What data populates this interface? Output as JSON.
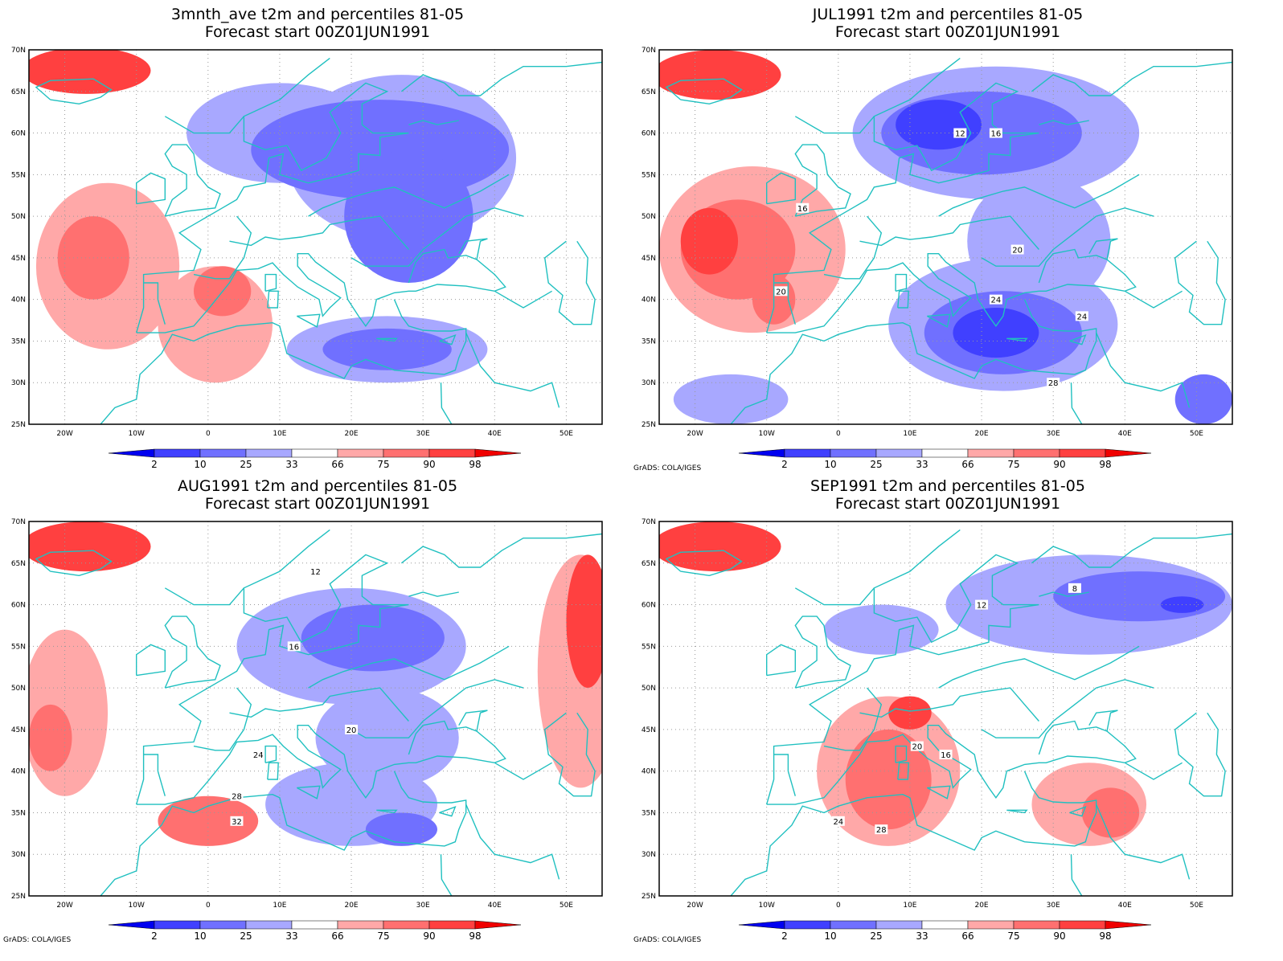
{
  "colorbar": {
    "labels": [
      "2",
      "10",
      "25",
      "33",
      "66",
      "75",
      "90",
      "98"
    ],
    "colors": [
      "#0000f0",
      "#4040ff",
      "#7070ff",
      "#a8a8ff",
      "#ffffff",
      "#ffa8a8",
      "#ff7070",
      "#ff4040",
      "#f00000"
    ]
  },
  "map_axes": {
    "lon_labels": [
      "20W",
      "10W",
      "0",
      "10E",
      "20E",
      "30E",
      "40E",
      "50E"
    ],
    "lat_labels": [
      "70N",
      "65N",
      "60N",
      "55N",
      "50N",
      "45N",
      "40N",
      "35N",
      "30N",
      "25N"
    ],
    "coast_color": "#20c0c0"
  },
  "credit": "GrADS: COLA/IGES",
  "panels": [
    {
      "title1": "3mnth_ave t2m and percentiles 81-05",
      "title2": "Forecast start 00Z01JUN1991",
      "show_credit": false,
      "blobs": [
        {
          "c": 7,
          "lon": -17,
          "lat": 67.5,
          "rx": 9,
          "ry": 2.8
        },
        {
          "c": 5,
          "lon": -14,
          "lat": 44,
          "rx": 10,
          "ry": 10
        },
        {
          "c": 6,
          "lon": -16,
          "lat": 45,
          "rx": 5,
          "ry": 5
        },
        {
          "c": 5,
          "lon": 1,
          "lat": 37,
          "rx": 8,
          "ry": 7
        },
        {
          "c": 6,
          "lon": 2,
          "lat": 41,
          "rx": 4,
          "ry": 3
        },
        {
          "c": 3,
          "lon": 10,
          "lat": 60,
          "rx": 13,
          "ry": 6
        },
        {
          "c": 3,
          "lon": 27,
          "lat": 57,
          "rx": 16,
          "ry": 10
        },
        {
          "c": 2,
          "lon": 24,
          "lat": 58,
          "rx": 18,
          "ry": 6
        },
        {
          "c": 2,
          "lon": 28,
          "lat": 50,
          "rx": 9,
          "ry": 8
        },
        {
          "c": 3,
          "lon": 25,
          "lat": 34,
          "rx": 14,
          "ry": 4
        },
        {
          "c": 2,
          "lon": 25,
          "lat": 34,
          "rx": 9,
          "ry": 2.5
        }
      ],
      "contours": []
    },
    {
      "title1": "JUL1991 t2m and percentiles 81-05",
      "title2": "Forecast start 00Z01JUN1991",
      "show_credit": true,
      "blobs": [
        {
          "c": 7,
          "lon": -17,
          "lat": 67,
          "rx": 9,
          "ry": 3
        },
        {
          "c": 5,
          "lon": -12,
          "lat": 46,
          "rx": 13,
          "ry": 10
        },
        {
          "c": 6,
          "lon": -14,
          "lat": 46,
          "rx": 8,
          "ry": 6
        },
        {
          "c": 7,
          "lon": -18,
          "lat": 47,
          "rx": 4,
          "ry": 4
        },
        {
          "c": 6,
          "lon": -9,
          "lat": 40,
          "rx": 3,
          "ry": 3
        },
        {
          "c": 3,
          "lon": 22,
          "lat": 60,
          "rx": 20,
          "ry": 8
        },
        {
          "c": 2,
          "lon": 20,
          "lat": 60,
          "rx": 14,
          "ry": 5
        },
        {
          "c": 1,
          "lon": 14,
          "lat": 61,
          "rx": 6,
          "ry": 3
        },
        {
          "c": 3,
          "lon": 28,
          "lat": 47,
          "rx": 10,
          "ry": 8
        },
        {
          "c": 3,
          "lon": 23,
          "lat": 37,
          "rx": 16,
          "ry": 8
        },
        {
          "c": 2,
          "lon": 23,
          "lat": 36,
          "rx": 11,
          "ry": 5
        },
        {
          "c": 1,
          "lon": 22,
          "lat": 36,
          "rx": 6,
          "ry": 3
        },
        {
          "c": 3,
          "lon": -15,
          "lat": 28,
          "rx": 8,
          "ry": 3
        },
        {
          "c": 2,
          "lon": 51,
          "lat": 28,
          "rx": 4,
          "ry": 3
        }
      ],
      "contours": [
        {
          "label": "12",
          "lon": 17,
          "lat": 60
        },
        {
          "label": "16",
          "lon": 22,
          "lat": 60
        },
        {
          "label": "20",
          "lon": 25,
          "lat": 46
        },
        {
          "label": "24",
          "lon": 22,
          "lat": 40
        },
        {
          "label": "28",
          "lon": 30,
          "lat": 30
        },
        {
          "label": "16",
          "lon": -5,
          "lat": 51
        },
        {
          "label": "20",
          "lon": -8,
          "lat": 41
        },
        {
          "label": "24",
          "lon": 34,
          "lat": 38
        }
      ]
    },
    {
      "title1": "AUG1991 t2m and percentiles 81-05",
      "title2": "Forecast start 00Z01JUN1991",
      "show_credit": true,
      "blobs": [
        {
          "c": 7,
          "lon": -17,
          "lat": 67,
          "rx": 9,
          "ry": 3
        },
        {
          "c": 5,
          "lon": -20,
          "lat": 47,
          "rx": 6,
          "ry": 10
        },
        {
          "c": 6,
          "lon": -22,
          "lat": 44,
          "rx": 3,
          "ry": 4
        },
        {
          "c": 6,
          "lon": 0,
          "lat": 34,
          "rx": 7,
          "ry": 3
        },
        {
          "c": 5,
          "lon": 52,
          "lat": 52,
          "rx": 6,
          "ry": 14
        },
        {
          "c": 7,
          "lon": 53,
          "lat": 58,
          "rx": 3,
          "ry": 8
        },
        {
          "c": 3,
          "lon": 20,
          "lat": 55,
          "rx": 16,
          "ry": 7
        },
        {
          "c": 2,
          "lon": 23,
          "lat": 56,
          "rx": 10,
          "ry": 4
        },
        {
          "c": 3,
          "lon": 25,
          "lat": 44,
          "rx": 10,
          "ry": 6
        },
        {
          "c": 3,
          "lon": 20,
          "lat": 36,
          "rx": 12,
          "ry": 5
        },
        {
          "c": 2,
          "lon": 27,
          "lat": 33,
          "rx": 5,
          "ry": 2
        }
      ],
      "contours": [
        {
          "label": "12",
          "lon": 15,
          "lat": 64
        },
        {
          "label": "16",
          "lon": 12,
          "lat": 55
        },
        {
          "label": "20",
          "lon": 20,
          "lat": 45
        },
        {
          "label": "24",
          "lon": 7,
          "lat": 42
        },
        {
          "label": "28",
          "lon": 4,
          "lat": 37
        },
        {
          "label": "32",
          "lon": 4,
          "lat": 34
        }
      ]
    },
    {
      "title1": "SEP1991 t2m and percentiles 81-05",
      "title2": "Forecast start 00Z01JUN1991",
      "show_credit": true,
      "blobs": [
        {
          "c": 7,
          "lon": -17,
          "lat": 67,
          "rx": 9,
          "ry": 3
        },
        {
          "c": 5,
          "lon": 7,
          "lat": 40,
          "rx": 10,
          "ry": 9
        },
        {
          "c": 6,
          "lon": 7,
          "lat": 39,
          "rx": 6,
          "ry": 6
        },
        {
          "c": 7,
          "lon": 10,
          "lat": 47,
          "rx": 3,
          "ry": 2
        },
        {
          "c": 5,
          "lon": 35,
          "lat": 36,
          "rx": 8,
          "ry": 5
        },
        {
          "c": 6,
          "lon": 38,
          "lat": 35,
          "rx": 4,
          "ry": 3
        },
        {
          "c": 3,
          "lon": 35,
          "lat": 60,
          "rx": 20,
          "ry": 6
        },
        {
          "c": 2,
          "lon": 42,
          "lat": 61,
          "rx": 12,
          "ry": 3
        },
        {
          "c": 1,
          "lon": 48,
          "lat": 60,
          "rx": 3,
          "ry": 1
        },
        {
          "c": 3,
          "lon": 6,
          "lat": 57,
          "rx": 8,
          "ry": 3
        }
      ],
      "contours": [
        {
          "label": "8",
          "lon": 33,
          "lat": 62
        },
        {
          "label": "12",
          "lon": 20,
          "lat": 60
        },
        {
          "label": "16",
          "lon": 15,
          "lat": 42
        },
        {
          "label": "20",
          "lon": 11,
          "lat": 43
        },
        {
          "label": "24",
          "lon": 0,
          "lat": 34
        },
        {
          "label": "28",
          "lon": 6,
          "lat": 33
        }
      ]
    }
  ]
}
